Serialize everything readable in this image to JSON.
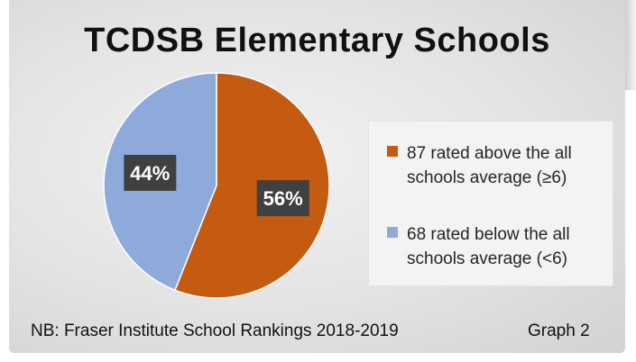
{
  "chart_data": {
    "type": "pie",
    "title": "TCDSB Elementary Schools",
    "slices": [
      {
        "label": "87 rated above the all schools average (≥6)",
        "value": 56,
        "display": "56%",
        "color": "#c55a11"
      },
      {
        "label": "68 rated below the all schools average (<6)",
        "value": 44,
        "display": "44%",
        "color": "#8eaadb"
      }
    ],
    "legend_position": "right"
  },
  "footer": {
    "source": "NB: Fraser Institute School Rankings 2018-2019",
    "graph_label": "Graph 2"
  }
}
